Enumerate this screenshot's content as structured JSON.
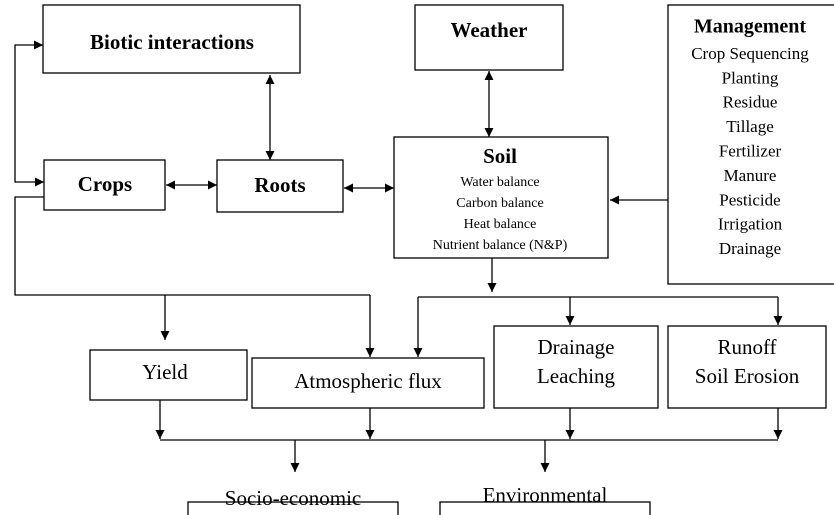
{
  "nodes": [
    {
      "label": "Biotic interactions"
    },
    {
      "label": "Weather"
    },
    {
      "title": "Management",
      "items": [
        "Crop Sequencing",
        "Planting",
        "Residue",
        "Tillage",
        "Fertilizer",
        "Manure",
        "Pesticide",
        "Irrigation",
        "Drainage"
      ]
    },
    {
      "label": "Crops"
    },
    {
      "label": "Roots"
    },
    {
      "title": "Soil",
      "items": [
        "Water balance",
        "Carbon balance",
        "Heat balance",
        "Nutrient balance (N&P)"
      ]
    },
    {
      "label": "Yield"
    },
    {
      "label": "Atmospheric flux"
    },
    {
      "lines": [
        "Drainage",
        "Leaching"
      ]
    },
    {
      "lines": [
        "Runoff",
        "Soil Erosion"
      ]
    },
    {
      "label": "Socio-economic"
    },
    {
      "label": "Environmental"
    }
  ]
}
